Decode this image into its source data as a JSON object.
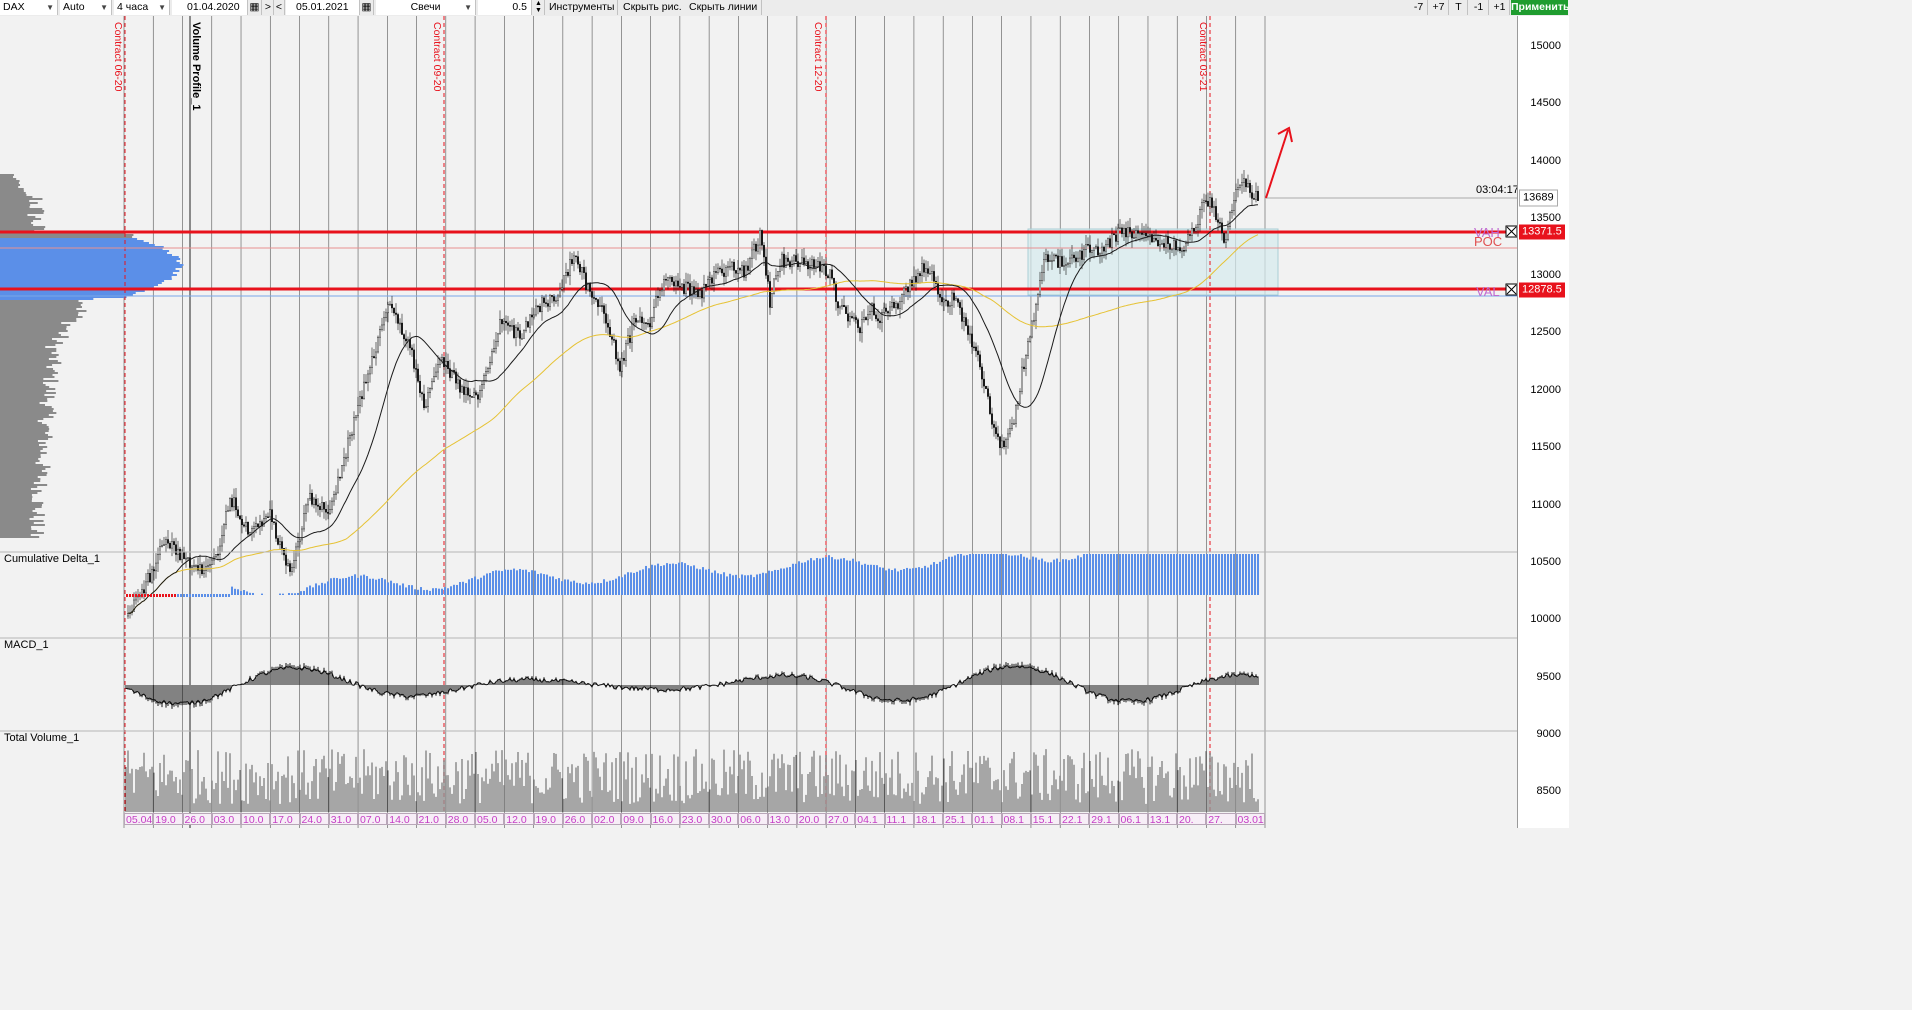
{
  "toolbar": {
    "symbol": "DAX",
    "scale": "Auto",
    "timeframe": "4 часа",
    "date_from": "01.04.2020",
    "nav_next": ">",
    "nav_prev": "<",
    "date_to": "05.01.2021",
    "chart_type": "Свечи",
    "step_value": "0.5",
    "tools": "Инструменты",
    "hide_drawings": "Скрыть рис.",
    "hide_lines": "Скрыть линии",
    "minus7": "-7",
    "plus7": "+7",
    "t": "T",
    "minus1": "-1",
    "plus1": "+1",
    "apply": "Применить"
  },
  "price_axis": {
    "ticks": [
      "15000",
      "14500",
      "14000",
      "13500",
      "13000",
      "12500",
      "12000",
      "11500",
      "11000",
      "10500",
      "10000",
      "9500",
      "9000",
      "8500"
    ],
    "current_price": "13689",
    "countdown": "03:04:17",
    "vah_price": "13371.5",
    "val_price": "12878.5"
  },
  "labels": {
    "vah": "VAH",
    "poc": "POC",
    "val": "VAL",
    "contracts": [
      "Contract 06-20",
      "Contract 09-20",
      "Contract 12-20",
      "Contract 03-21"
    ],
    "volume_profile": "Volume Profile_1"
  },
  "panes": {
    "cumulative_delta": "Cumulative Delta_1",
    "macd": "MACD_1",
    "total_volume": "Total Volume_1"
  },
  "dates": [
    "05.04",
    "19.0",
    "26.0",
    "03.0",
    "10.0",
    "17.0",
    "24.0",
    "31.0",
    "07.0",
    "14.0",
    "21.0",
    "28.0",
    "05.0",
    "12.0",
    "19.0",
    "26.0",
    "02.0",
    "09.0",
    "16.0",
    "23.0",
    "30.0",
    "06.0",
    "13.0",
    "20.0",
    "27.0",
    "04.1",
    "11.1",
    "18.1",
    "25.1",
    "01.1",
    "08.1",
    "15.1",
    "22.1",
    "29.1",
    "06.1",
    "13.1",
    "20.",
    "27.",
    "03.01"
  ],
  "colors": {
    "level_line": "#e8121c",
    "profile_blue": "#5b8fe8",
    "profile_gray": "#8a8a8a",
    "delta_bar": "#5b8fe8",
    "apply_button": "#1f9c2f",
    "date_text": "#c53dc5"
  }
}
